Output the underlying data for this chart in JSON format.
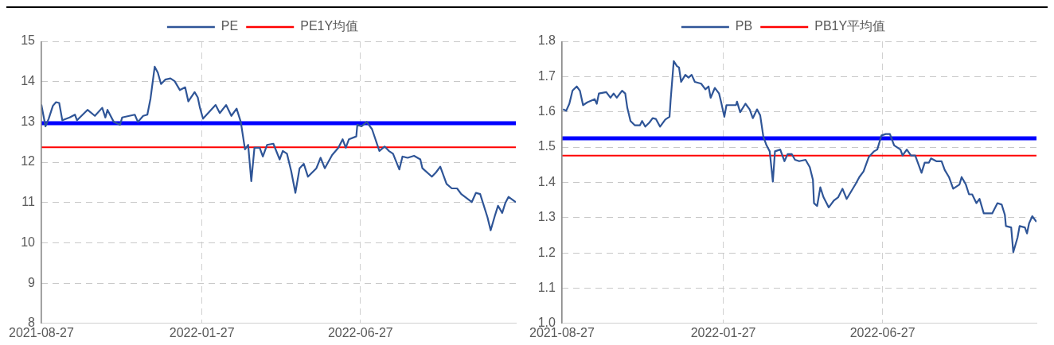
{
  "chart_data": [
    {
      "type": "line",
      "x": [
        "2021-08-27",
        "2021-08-31",
        "2021-09-03",
        "2021-09-07",
        "2021-09-10",
        "2021-09-13",
        "2021-09-16",
        "2021-09-23",
        "2021-09-28",
        "2021-09-30",
        "2021-10-10",
        "2021-10-17",
        "2021-10-24",
        "2021-10-27",
        "2021-10-29",
        "2021-11-04",
        "2021-11-10",
        "2021-11-12",
        "2021-11-24",
        "2021-11-27",
        "2021-12-02",
        "2021-12-06",
        "2021-12-09",
        "2021-12-13",
        "2021-12-16",
        "2021-12-19",
        "2021-12-23",
        "2021-12-28",
        "2022-01-01",
        "2022-01-06",
        "2022-01-11",
        "2022-01-14",
        "2022-01-20",
        "2022-01-23",
        "2022-01-25",
        "2022-01-28",
        "2022-02-09",
        "2022-02-13",
        "2022-02-19",
        "2022-02-24",
        "2022-03-01",
        "2022-03-05",
        "2022-03-09",
        "2022-03-12",
        "2022-03-15",
        "2022-03-18",
        "2022-03-23",
        "2022-03-26",
        "2022-03-30",
        "2022-04-05",
        "2022-04-11",
        "2022-04-14",
        "2022-04-18",
        "2022-04-22",
        "2022-04-26",
        "2022-04-30",
        "2022-05-04",
        "2022-05-08",
        "2022-05-16",
        "2022-05-20",
        "2022-05-24",
        "2022-05-31",
        "2022-06-06",
        "2022-06-10",
        "2022-06-13",
        "2022-06-16",
        "2022-06-23",
        "2022-06-24",
        "2022-06-28",
        "2022-07-03",
        "2022-07-08",
        "2022-07-15",
        "2022-07-20",
        "2022-07-24",
        "2022-07-28",
        "2022-08-03",
        "2022-08-06",
        "2022-08-11",
        "2022-08-17",
        "2022-08-23",
        "2022-08-25",
        "2022-09-03",
        "2022-09-07",
        "2022-09-11",
        "2022-09-17",
        "2022-09-22",
        "2022-09-27",
        "2022-10-01",
        "2022-10-11",
        "2022-10-15",
        "2022-10-19",
        "2022-10-26",
        "2022-10-29",
        "2022-11-02",
        "2022-11-05",
        "2022-11-09",
        "2022-11-12",
        "2022-11-15",
        "2022-11-22"
      ],
      "series": [
        {
          "name": "PE",
          "color": "#2f5597",
          "values": [
            13.43,
            12.89,
            13.08,
            13.4,
            13.49,
            13.47,
            13.04,
            13.11,
            13.18,
            13.04,
            13.3,
            13.15,
            13.35,
            13.11,
            13.3,
            13.0,
            12.93,
            13.11,
            13.18,
            13.0,
            13.15,
            13.18,
            13.58,
            14.37,
            14.22,
            13.94,
            14.05,
            14.08,
            14.01,
            13.79,
            13.86,
            13.51,
            13.74,
            13.61,
            13.36,
            13.08,
            13.42,
            13.22,
            13.42,
            13.15,
            13.33,
            13.0,
            12.32,
            12.43,
            11.53,
            12.36,
            12.36,
            12.14,
            12.43,
            12.46,
            12.07,
            12.28,
            12.21,
            11.78,
            11.24,
            11.85,
            11.96,
            11.64,
            11.85,
            12.11,
            11.85,
            12.18,
            12.36,
            12.57,
            12.36,
            12.57,
            12.64,
            12.93,
            12.89,
            13.0,
            12.82,
            12.28,
            12.39,
            12.28,
            12.21,
            11.82,
            12.14,
            12.11,
            12.16,
            12.07,
            11.85,
            11.64,
            11.75,
            11.89,
            11.46,
            11.35,
            11.35,
            11.21,
            11.01,
            11.24,
            11.21,
            10.63,
            10.31,
            10.67,
            10.92,
            10.74,
            10.99,
            11.14,
            11.01
          ]
        }
      ],
      "ref_lines": [
        {
          "axis": "y",
          "value": 12.97,
          "color": "#0000ff"
        },
        {
          "axis": "y",
          "value": 12.37,
          "label": "PE1Y均值",
          "color": "#ff0000"
        }
      ],
      "xlim": [
        "2021-08-27",
        "2022-11-22"
      ],
      "xticks": [
        "2021-08-27",
        "2022-01-27",
        "2022-06-27"
      ],
      "ylim": [
        8,
        15
      ],
      "yticks": [
        8,
        9,
        10,
        11,
        12,
        13,
        14,
        15
      ],
      "grid": true,
      "legend": "top"
    },
    {
      "type": "line",
      "x": [
        "2021-08-28",
        "2021-08-31",
        "2021-09-03",
        "2021-09-06",
        "2021-09-10",
        "2021-09-13",
        "2021-09-16",
        "2021-09-20",
        "2021-09-27",
        "2021-09-29",
        "2021-10-01",
        "2021-10-08",
        "2021-10-12",
        "2021-10-15",
        "2021-10-18",
        "2021-10-23",
        "2021-10-26",
        "2021-10-28",
        "2021-10-31",
        "2021-11-04",
        "2021-11-09",
        "2021-11-11",
        "2021-11-14",
        "2021-11-18",
        "2021-11-21",
        "2021-11-24",
        "2021-11-28",
        "2021-12-03",
        "2021-12-07",
        "2021-12-08",
        "2021-12-11",
        "2021-12-14",
        "2021-12-16",
        "2021-12-18",
        "2021-12-22",
        "2021-12-25",
        "2021-12-28",
        "2021-12-31",
        "2022-01-06",
        "2022-01-10",
        "2022-01-13",
        "2022-01-15",
        "2022-01-19",
        "2022-01-23",
        "2022-01-25",
        "2022-01-28",
        "2022-01-30",
        "2022-02-08",
        "2022-02-09",
        "2022-02-12",
        "2022-02-17",
        "2022-02-21",
        "2022-02-24",
        "2022-02-28",
        "2022-03-03",
        "2022-03-06",
        "2022-03-09",
        "2022-03-12",
        "2022-03-15",
        "2022-03-17",
        "2022-03-22",
        "2022-03-26",
        "2022-03-29",
        "2022-04-02",
        "2022-04-05",
        "2022-04-09",
        "2022-04-15",
        "2022-04-19",
        "2022-04-22",
        "2022-04-23",
        "2022-04-26",
        "2022-04-29",
        "2022-05-02",
        "2022-05-07",
        "2022-05-12",
        "2022-05-16",
        "2022-05-20",
        "2022-05-24",
        "2022-06-02",
        "2022-06-05",
        "2022-06-09",
        "2022-06-14",
        "2022-06-19",
        "2022-06-22",
        "2022-06-26",
        "2022-06-30",
        "2022-07-04",
        "2022-07-08",
        "2022-07-14",
        "2022-07-16",
        "2022-07-20",
        "2022-07-24",
        "2022-07-28",
        "2022-08-03",
        "2022-08-06",
        "2022-08-10",
        "2022-08-12",
        "2022-08-17",
        "2022-08-22",
        "2022-08-25",
        "2022-08-29",
        "2022-09-02",
        "2022-09-08",
        "2022-09-10",
        "2022-09-14",
        "2022-09-17",
        "2022-09-20",
        "2022-09-24",
        "2022-09-27",
        "2022-10-01",
        "2022-10-09",
        "2022-10-14",
        "2022-10-18",
        "2022-10-21",
        "2022-10-22",
        "2022-10-27",
        "2022-10-29",
        "2022-11-02",
        "2022-11-04",
        "2022-11-09",
        "2022-11-11",
        "2022-11-13",
        "2022-11-16",
        "2022-11-20"
      ],
      "series": [
        {
          "name": "PB",
          "color": "#2f5597",
          "values": [
            1.607,
            1.603,
            1.623,
            1.66,
            1.672,
            1.66,
            1.619,
            1.627,
            1.636,
            1.623,
            1.652,
            1.656,
            1.64,
            1.652,
            1.64,
            1.66,
            1.652,
            1.611,
            1.574,
            1.562,
            1.562,
            1.574,
            1.558,
            1.57,
            1.582,
            1.58,
            1.558,
            1.578,
            1.586,
            1.631,
            1.744,
            1.73,
            1.726,
            1.685,
            1.705,
            1.697,
            1.705,
            1.685,
            1.68,
            1.664,
            1.672,
            1.64,
            1.668,
            1.652,
            1.627,
            1.586,
            1.619,
            1.619,
            1.629,
            1.599,
            1.623,
            1.607,
            1.582,
            1.607,
            1.59,
            1.529,
            1.505,
            1.488,
            1.402,
            1.488,
            1.493,
            1.46,
            1.48,
            1.48,
            1.464,
            1.46,
            1.464,
            1.443,
            1.407,
            1.341,
            1.333,
            1.386,
            1.358,
            1.329,
            1.349,
            1.358,
            1.382,
            1.353,
            1.398,
            1.415,
            1.431,
            1.472,
            1.488,
            1.493,
            1.533,
            1.537,
            1.537,
            1.505,
            1.493,
            1.476,
            1.493,
            1.476,
            1.476,
            1.427,
            1.456,
            1.456,
            1.468,
            1.46,
            1.46,
            1.435,
            1.415,
            1.382,
            1.394,
            1.415,
            1.394,
            1.366,
            1.366,
            1.341,
            1.353,
            1.312,
            1.312,
            1.341,
            1.337,
            1.308,
            1.276,
            1.272,
            1.202,
            1.243,
            1.276,
            1.272,
            1.255,
            1.284,
            1.304,
            1.288
          ]
        }
      ],
      "ref_lines": [
        {
          "axis": "y",
          "value": 1.525,
          "color": "#0000ff"
        },
        {
          "axis": "y",
          "value": 1.476,
          "label": "PB1Y平均值",
          "color": "#ff0000"
        }
      ],
      "xlim": [
        "2021-08-27",
        "2022-11-20"
      ],
      "xticks": [
        "2021-08-27",
        "2022-01-27",
        "2022-06-27"
      ],
      "ylim": [
        1.0,
        1.8
      ],
      "yticks": [
        {
          "value": 1,
          "label": "1.0"
        },
        1.1,
        1.2,
        1.3,
        1.4,
        1.5,
        1.6,
        1.7,
        1.8
      ],
      "grid": true,
      "legend": "top"
    }
  ]
}
